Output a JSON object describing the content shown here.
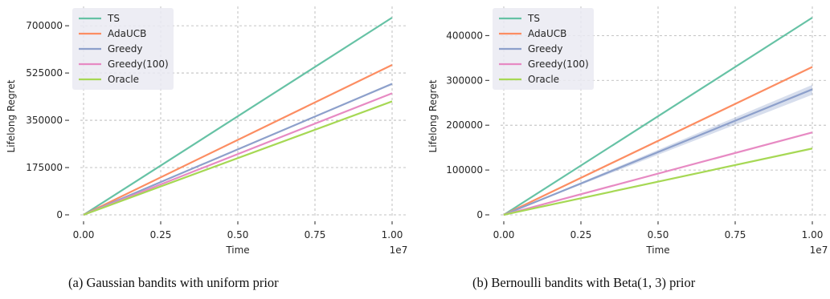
{
  "charts": [
    {
      "caption": "(a) Gaussian bandits with uniform prior",
      "chart_data": {
        "type": "line",
        "xlabel": "Time",
        "ylabel": "Lifelong Regret",
        "x_offset_label": "1e7",
        "xlim": [
          0,
          1.0
        ],
        "ylim": [
          0,
          730000
        ],
        "xticks": [
          "0.00",
          "0.25",
          "0.50",
          "0.75",
          "1.00"
        ],
        "xtick_values": [
          0,
          0.25,
          0.5,
          0.75,
          1.0
        ],
        "yticks": [
          "0",
          "175000",
          "350000",
          "525000",
          "700000"
        ],
        "ytick_values": [
          0,
          175000,
          350000,
          525000,
          700000
        ],
        "grid": true,
        "legend_position": "top-left",
        "series": [
          {
            "name": "TS",
            "color": "#66c2a5",
            "x": [
              0,
              1.0
            ],
            "y": [
              0,
              730000
            ]
          },
          {
            "name": "AdaUCB",
            "color": "#fc8d62",
            "x": [
              0,
              1.0
            ],
            "y": [
              0,
              555000
            ]
          },
          {
            "name": "Greedy",
            "color": "#8da0cb",
            "x": [
              0,
              1.0
            ],
            "y": [
              0,
              485000
            ]
          },
          {
            "name": "Greedy(100)",
            "color": "#e78ac3",
            "x": [
              0,
              1.0
            ],
            "y": [
              0,
              450000
            ]
          },
          {
            "name": "Oracle",
            "color": "#a6d854",
            "x": [
              0,
              1.0
            ],
            "y": [
              0,
              420000
            ]
          }
        ]
      }
    },
    {
      "caption": "(b) Bernoulli bandits with Beta(1, 3) prior",
      "chart_data": {
        "type": "line",
        "xlabel": "Time",
        "ylabel": "Lifelong Regret",
        "x_offset_label": "1e7",
        "xlim": [
          0,
          1.0
        ],
        "ylim": [
          0,
          440000
        ],
        "xticks": [
          "0.00",
          "0.25",
          "0.50",
          "0.75",
          "1.00"
        ],
        "xtick_values": [
          0,
          0.25,
          0.5,
          0.75,
          1.0
        ],
        "yticks": [
          "0",
          "100000",
          "200000",
          "300000",
          "400000"
        ],
        "ytick_values": [
          0,
          100000,
          200000,
          300000,
          400000
        ],
        "grid": true,
        "legend_position": "top-left",
        "series": [
          {
            "name": "TS",
            "color": "#66c2a5",
            "x": [
              0,
              1.0
            ],
            "y": [
              0,
              440000
            ]
          },
          {
            "name": "AdaUCB",
            "color": "#fc8d62",
            "x": [
              0,
              1.0
            ],
            "y": [
              0,
              330000
            ]
          },
          {
            "name": "Greedy",
            "color": "#8da0cb",
            "x": [
              0,
              1.0
            ],
            "y": [
              0,
              280000
            ],
            "band_lower": [
              0,
              268000
            ],
            "band_upper": [
              0,
              290000
            ]
          },
          {
            "name": "Greedy(100)",
            "color": "#e78ac3",
            "x": [
              0,
              1.0
            ],
            "y": [
              0,
              184000
            ]
          },
          {
            "name": "Oracle",
            "color": "#a6d854",
            "x": [
              0,
              1.0
            ],
            "y": [
              0,
              148000
            ]
          }
        ]
      }
    }
  ]
}
